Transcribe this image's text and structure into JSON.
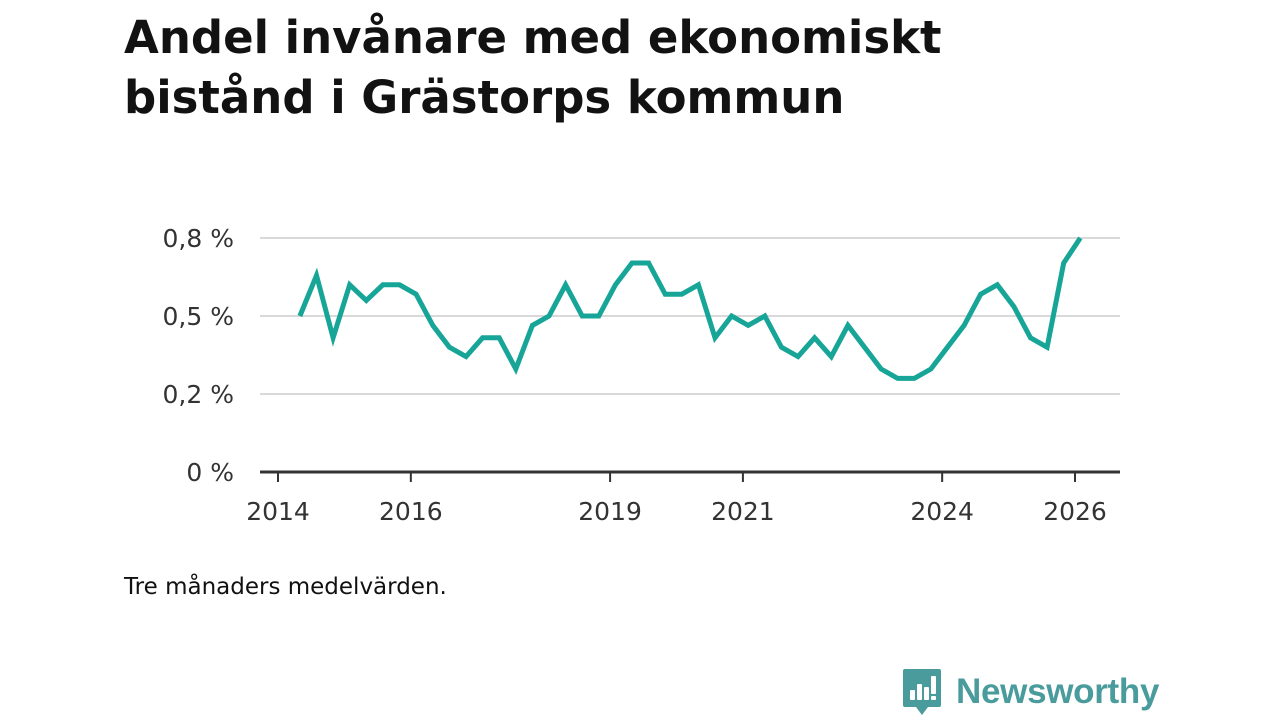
{
  "title": "Andel invånare med ekonomiskt bistånd i Grästorps kommun",
  "note": "Tre månaders medelvärden.",
  "brand": {
    "name": "Newsworthy",
    "color": "#4a9b9c"
  },
  "colors": {
    "line": "#17a598",
    "grid": "#d9d9d9",
    "axis": "#333333"
  },
  "chart_data": {
    "type": "line",
    "title": "Andel invånare med ekonomiskt bistånd i Grästorps kommun",
    "xlabel": "",
    "ylabel": "",
    "ylim": [
      0,
      0.8
    ],
    "xlim": [
      2013.75,
      2027.05
    ],
    "grid": true,
    "y_ticks": [
      {
        "value": 0,
        "label": "0 %"
      },
      {
        "value": 0.25,
        "label": "0,2 %"
      },
      {
        "value": 0.5,
        "label": "0,5 %"
      },
      {
        "value": 0.75,
        "label": "0,8 %"
      }
    ],
    "x_ticks": [
      {
        "value": 2014,
        "label": "2014"
      },
      {
        "value": 2016,
        "label": "2016"
      },
      {
        "value": 2019,
        "label": "2019"
      },
      {
        "value": 2021,
        "label": "2021"
      },
      {
        "value": 2024,
        "label": "2024"
      },
      {
        "value": 2026,
        "label": "2026"
      }
    ],
    "series": [
      {
        "name": "Andel invånare med ekonomiskt bistånd",
        "x": [
          2014.33,
          2014.58,
          2014.83,
          2015.08,
          2015.33,
          2015.58,
          2015.83,
          2016.08,
          2016.33,
          2016.58,
          2016.83,
          2017.08,
          2017.33,
          2017.58,
          2017.83,
          2018.08,
          2018.33,
          2018.58,
          2018.83,
          2019.08,
          2019.33,
          2019.58,
          2019.83,
          2020.08,
          2020.33,
          2020.58,
          2020.83,
          2021.08,
          2021.33,
          2021.58,
          2021.83,
          2022.08,
          2022.33,
          2022.58,
          2022.83,
          2023.08,
          2023.33,
          2023.58,
          2023.83,
          2024.08,
          2024.33,
          2024.58,
          2024.83,
          2025.08,
          2025.33,
          2025.58,
          2025.83,
          2026.08
        ],
        "values": [
          0.5,
          0.63,
          0.43,
          0.6,
          0.55,
          0.6,
          0.6,
          0.57,
          0.47,
          0.4,
          0.37,
          0.43,
          0.43,
          0.33,
          0.47,
          0.5,
          0.6,
          0.5,
          0.5,
          0.6,
          0.67,
          0.67,
          0.57,
          0.57,
          0.6,
          0.43,
          0.5,
          0.47,
          0.5,
          0.4,
          0.37,
          0.43,
          0.37,
          0.47,
          0.4,
          0.33,
          0.3,
          0.3,
          0.33,
          0.4,
          0.47,
          0.57,
          0.6,
          0.53,
          0.43,
          0.4,
          0.67,
          0.75
        ]
      }
    ]
  }
}
